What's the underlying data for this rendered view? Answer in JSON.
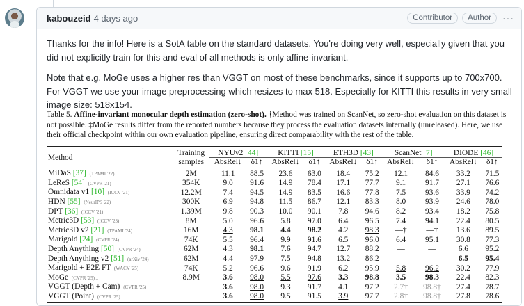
{
  "comment": {
    "username": "kabouzeid",
    "timestamp": "4 days ago",
    "badges": [
      "Contributor",
      "Author"
    ],
    "more_label": "···",
    "paragraphs": [
      "Thanks for the info! Here is a SotA table on the standard datasets. You're doing very well, especially given that you did not explicitly train for this and eval of all methods is only affine-invariant.",
      "Note that e.g. MoGe uses a higher res than VGGT on most of these benchmarks, since it supports up to 700x700. For VGGT we use your image preprocessing which resizes to max 518. Especially for KITTI this results in very small image size: 518x154."
    ]
  },
  "table": {
    "caption_label": "Table 5.",
    "caption_title": "Affine-invariant monocular depth estimation (zero-shot).",
    "caption_rest": " †Method was trained on ScanNet, so zero-shot evaluation on this dataset is not possible. ‡MoGe results differ from the reported numbers because they process the evaluation datasets internally (unreleased). Here, we use their official checkpoint within our own evaluation pipeline, ensuring direct comparability with the rest of the table.",
    "col_method": "Method",
    "col_training": "Training",
    "col_samples": "samples",
    "datasets": [
      {
        "name": "NYUv2",
        "ref": "[44]"
      },
      {
        "name": "KITTI",
        "ref": "[15]"
      },
      {
        "name": "ETH3D",
        "ref": "[43]"
      },
      {
        "name": "ScanNet",
        "ref": "[7]"
      },
      {
        "name": "DIODE",
        "ref": "[46]"
      }
    ],
    "metric_abs": "AbsRel↓",
    "metric_d1": "δ1↑",
    "rows": [
      {
        "method": "MiDaS",
        "ref": "[37]",
        "venue": "(TPAMI '22)",
        "samples": "2M",
        "cells": [
          [
            "11.1",
            ""
          ],
          [
            "88.5",
            ""
          ],
          [
            "23.6",
            ""
          ],
          [
            "63.0",
            ""
          ],
          [
            "18.4",
            ""
          ],
          [
            "75.2",
            ""
          ],
          [
            "12.1",
            ""
          ],
          [
            "84.6",
            ""
          ],
          [
            "33.2",
            ""
          ],
          [
            "71.5",
            ""
          ]
        ]
      },
      {
        "method": "LeReS",
        "ref": "[54]",
        "venue": "(CVPR '21)",
        "samples": "354K",
        "cells": [
          [
            "9.0",
            ""
          ],
          [
            "91.6",
            ""
          ],
          [
            "14.9",
            ""
          ],
          [
            "78.4",
            ""
          ],
          [
            "17.1",
            ""
          ],
          [
            "77.7",
            ""
          ],
          [
            "9.1",
            ""
          ],
          [
            "91.7",
            ""
          ],
          [
            "27.1",
            ""
          ],
          [
            "76.6",
            ""
          ]
        ]
      },
      {
        "method": "Omnidata v1",
        "ref": "[10]",
        "venue": "(ICCV '21)",
        "samples": "12.2M",
        "cells": [
          [
            "7.4",
            ""
          ],
          [
            "94.5",
            ""
          ],
          [
            "14.9",
            ""
          ],
          [
            "83.5",
            ""
          ],
          [
            "16.6",
            ""
          ],
          [
            "77.8",
            ""
          ],
          [
            "7.5",
            ""
          ],
          [
            "93.6",
            ""
          ],
          [
            "33.9",
            ""
          ],
          [
            "74.2",
            ""
          ]
        ]
      },
      {
        "method": "HDN",
        "ref": "[55]",
        "venue": "(NeurIPS '22)",
        "samples": "300K",
        "cells": [
          [
            "6.9",
            ""
          ],
          [
            "94.8",
            ""
          ],
          [
            "11.5",
            ""
          ],
          [
            "86.7",
            ""
          ],
          [
            "12.1",
            ""
          ],
          [
            "83.3",
            ""
          ],
          [
            "8.0",
            ""
          ],
          [
            "93.9",
            ""
          ],
          [
            "24.6",
            ""
          ],
          [
            "78.0",
            ""
          ]
        ]
      },
      {
        "method": "DPT",
        "ref": "[36]",
        "venue": "(ICCV '21)",
        "samples": "1.39M",
        "cells": [
          [
            "9.8",
            ""
          ],
          [
            "90.3",
            ""
          ],
          [
            "10.0",
            ""
          ],
          [
            "90.1",
            ""
          ],
          [
            "7.8",
            ""
          ],
          [
            "94.6",
            ""
          ],
          [
            "8.2",
            ""
          ],
          [
            "93.4",
            ""
          ],
          [
            "18.2",
            ""
          ],
          [
            "75.8",
            ""
          ]
        ]
      },
      {
        "method": "Metric3D",
        "ref": "[53]",
        "venue": "(ICCV '23)",
        "samples": "8M",
        "cells": [
          [
            "5.0",
            ""
          ],
          [
            "96.6",
            ""
          ],
          [
            "5.8",
            ""
          ],
          [
            "97.0",
            ""
          ],
          [
            "6.4",
            ""
          ],
          [
            "96.5",
            ""
          ],
          [
            "7.4",
            ""
          ],
          [
            "94.1",
            ""
          ],
          [
            "22.4",
            ""
          ],
          [
            "80.5",
            ""
          ]
        ]
      },
      {
        "method": "Metric3D v2",
        "ref": "[21]",
        "venue": "(TPAMI '24)",
        "samples": "16M",
        "cells": [
          [
            "4.3",
            "u"
          ],
          [
            "98.1",
            "b"
          ],
          [
            "4.4",
            "b"
          ],
          [
            "98.2",
            "b"
          ],
          [
            "4.2",
            ""
          ],
          [
            "98.3",
            "u"
          ],
          [
            "—†",
            ""
          ],
          [
            "—†",
            ""
          ],
          [
            "13.6",
            ""
          ],
          [
            "89.5",
            ""
          ]
        ]
      },
      {
        "method": "Marigold",
        "ref": "[24]",
        "venue": "(CVPR '24)",
        "samples": "74K",
        "cells": [
          [
            "5.5",
            ""
          ],
          [
            "96.4",
            ""
          ],
          [
            "9.9",
            ""
          ],
          [
            "91.6",
            ""
          ],
          [
            "6.5",
            ""
          ],
          [
            "96.0",
            ""
          ],
          [
            "6.4",
            ""
          ],
          [
            "95.1",
            ""
          ],
          [
            "30.8",
            ""
          ],
          [
            "77.3",
            ""
          ]
        ]
      },
      {
        "method": "Depth Anything",
        "ref": "[50]",
        "venue": "(CVPR '24)",
        "samples": "62M",
        "cells": [
          [
            "4.3",
            "u"
          ],
          [
            "98.1",
            "b"
          ],
          [
            "7.6",
            ""
          ],
          [
            "94.7",
            ""
          ],
          [
            "12.7",
            ""
          ],
          [
            "88.2",
            ""
          ],
          [
            "—",
            ""
          ],
          [
            "—",
            ""
          ],
          [
            "6.6",
            "u"
          ],
          [
            "95.2",
            "u"
          ]
        ]
      },
      {
        "method": "Depth Anything v2",
        "ref": "[51]",
        "venue": "(arXiv '24)",
        "samples": "62M",
        "cells": [
          [
            "4.4",
            ""
          ],
          [
            "97.9",
            ""
          ],
          [
            "7.5",
            ""
          ],
          [
            "94.8",
            ""
          ],
          [
            "13.2",
            ""
          ],
          [
            "86.2",
            ""
          ],
          [
            "—",
            ""
          ],
          [
            "—",
            ""
          ],
          [
            "6.5",
            "b"
          ],
          [
            "95.4",
            "b"
          ]
        ]
      },
      {
        "method": "Marigold + E2E FT",
        "ref": "",
        "venue": "(WACV '25)",
        "samples": "74K",
        "cells": [
          [
            "5.2",
            ""
          ],
          [
            "96.6",
            ""
          ],
          [
            "9.6",
            ""
          ],
          [
            "91.9",
            ""
          ],
          [
            "6.2",
            ""
          ],
          [
            "95.9",
            ""
          ],
          [
            "5.8",
            "u"
          ],
          [
            "96.2",
            "u"
          ],
          [
            "30.2",
            ""
          ],
          [
            "77.9",
            ""
          ]
        ]
      },
      {
        "method": "MoGe",
        "ref": "",
        "venue": "(CVPR '25) ‡",
        "samples": "8.9M",
        "cells": [
          [
            "3.6",
            "b"
          ],
          [
            "98.0",
            "u"
          ],
          [
            "5.5",
            "u"
          ],
          [
            "97.6",
            "u"
          ],
          [
            "3.3",
            "b"
          ],
          [
            "98.8",
            "b"
          ],
          [
            "3.5",
            "b"
          ],
          [
            "98.3",
            "b"
          ],
          [
            "22.4",
            ""
          ],
          [
            "82.3",
            ""
          ]
        ]
      },
      {
        "method": "VGGT (Depth + Cam)",
        "ref": "",
        "venue": "(CVPR '25)",
        "samples": "",
        "cells": [
          [
            "3.6",
            "b"
          ],
          [
            "98.0",
            "u"
          ],
          [
            "9.3",
            ""
          ],
          [
            "91.7",
            ""
          ],
          [
            "4.1",
            ""
          ],
          [
            "97.2",
            ""
          ],
          [
            "2.7†",
            "g"
          ],
          [
            "98.8†",
            "g"
          ],
          [
            "27.4",
            ""
          ],
          [
            "78.7",
            ""
          ]
        ]
      },
      {
        "method": "VGGT (Point)",
        "ref": "",
        "venue": "(CVPR '25)",
        "samples": "",
        "cells": [
          [
            "3.6",
            "b"
          ],
          [
            "98.0",
            "u"
          ],
          [
            "9.5",
            ""
          ],
          [
            "91.5",
            ""
          ],
          [
            "3.9",
            "u"
          ],
          [
            "97.7",
            ""
          ],
          [
            "2.8†",
            "g"
          ],
          [
            "98.8†",
            "g"
          ],
          [
            "27.8",
            ""
          ],
          [
            "78.6",
            ""
          ]
        ]
      }
    ]
  }
}
